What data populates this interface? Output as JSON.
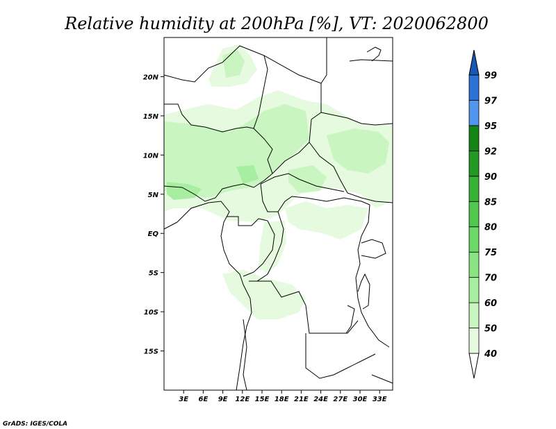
{
  "title": "Relative humidity at 200hPa [%], VT: 2020062800",
  "credit": "GrADS: IGES/COLA",
  "map": {
    "lon_range": [
      0,
      35
    ],
    "lat_range": [
      -20,
      25
    ],
    "x_ticks": [
      {
        "lon": 3,
        "label": "3E"
      },
      {
        "lon": 6,
        "label": "6E"
      },
      {
        "lon": 9,
        "label": "9E"
      },
      {
        "lon": 12,
        "label": "12E"
      },
      {
        "lon": 15,
        "label": "15E"
      },
      {
        "lon": 18,
        "label": "18E"
      },
      {
        "lon": 21,
        "label": "21E"
      },
      {
        "lon": 24,
        "label": "24E"
      },
      {
        "lon": 27,
        "label": "27E"
      },
      {
        "lon": 30,
        "label": "30E"
      },
      {
        "lon": 33,
        "label": "33E"
      }
    ],
    "y_ticks": [
      {
        "lat": 20,
        "label": "20N"
      },
      {
        "lat": 15,
        "label": "15N"
      },
      {
        "lat": 10,
        "label": "10N"
      },
      {
        "lat": 5,
        "label": "5N"
      },
      {
        "lat": 0,
        "label": "EQ"
      },
      {
        "lat": -5,
        "label": "5S"
      },
      {
        "lat": -10,
        "label": "10S"
      },
      {
        "lat": -15,
        "label": "15S"
      }
    ]
  },
  "colorbar": {
    "levels": [
      "40",
      "50",
      "60",
      "70",
      "75",
      "80",
      "85",
      "90",
      "92",
      "95",
      "97",
      "99"
    ],
    "colors": [
      "#ffffff",
      "#e6fae0",
      "#c8f5c0",
      "#a8eea0",
      "#8ae482",
      "#6cd866",
      "#50c84e",
      "#38b236",
      "#229a22",
      "#148414",
      "#4f96ec",
      "#2a72d4",
      "#1a56b4"
    ]
  },
  "humidity_legend_colors": {
    "40-50": "#e6fae0",
    "50-60": "#c8f5c0",
    "60-70": "#a8eea0"
  }
}
